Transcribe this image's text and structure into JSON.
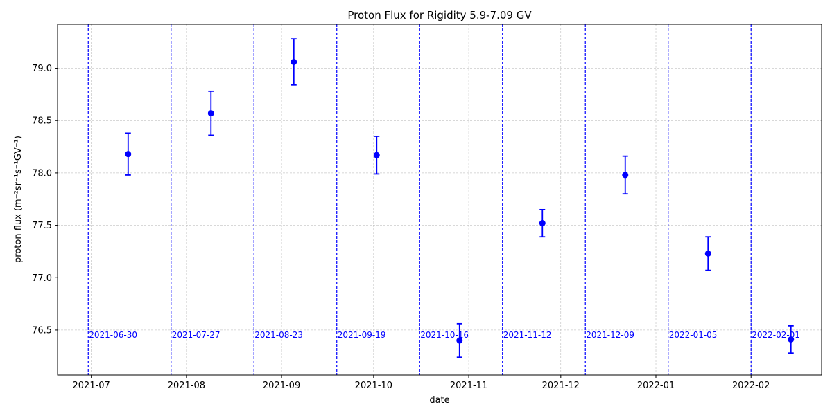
{
  "chart_data": {
    "type": "scatter",
    "title": "Proton Flux for Rigidity 5.9-7.09 GV",
    "xlabel": "date",
    "ylabel": "proton flux (m⁻²sr⁻¹s⁻¹GV⁻¹)",
    "xlim": [
      "2021-06-20",
      "2022-02-24"
    ],
    "ylim": [
      76.07,
      79.42
    ],
    "grid": true,
    "x_ticks": [
      {
        "date": "2021-07-01",
        "label": "2021-07"
      },
      {
        "date": "2021-08-01",
        "label": "2021-08"
      },
      {
        "date": "2021-09-01",
        "label": "2021-09"
      },
      {
        "date": "2021-10-01",
        "label": "2021-10"
      },
      {
        "date": "2021-11-01",
        "label": "2021-11"
      },
      {
        "date": "2021-12-01",
        "label": "2021-12"
      },
      {
        "date": "2022-01-01",
        "label": "2022-01"
      },
      {
        "date": "2022-02-01",
        "label": "2022-02"
      }
    ],
    "y_ticks": [
      76.5,
      77.0,
      77.5,
      78.0,
      78.5,
      79.0
    ],
    "y_tick_labels": [
      "76.5",
      "77.0",
      "77.5",
      "78.0",
      "78.5",
      "79.0"
    ],
    "series": [
      {
        "color": "#0000ff",
        "points": [
          {
            "x": "2021-07-13",
            "y": 78.18,
            "err": 0.2
          },
          {
            "x": "2021-08-09",
            "y": 78.57,
            "err": 0.21
          },
          {
            "x": "2021-09-05",
            "y": 79.06,
            "err": 0.22
          },
          {
            "x": "2021-10-02",
            "y": 78.17,
            "err": 0.18
          },
          {
            "x": "2021-10-29",
            "y": 76.4,
            "err": 0.16
          },
          {
            "x": "2021-11-25",
            "y": 77.52,
            "err": 0.13
          },
          {
            "x": "2021-12-22",
            "y": 77.98,
            "err": 0.18
          },
          {
            "x": "2022-01-18",
            "y": 77.23,
            "err": 0.16
          },
          {
            "x": "2022-02-14",
            "y": 76.41,
            "err": 0.13
          }
        ]
      }
    ],
    "vlines": [
      {
        "date": "2021-06-30",
        "label": "2021-06-30"
      },
      {
        "date": "2021-07-27",
        "label": "2021-07-27"
      },
      {
        "date": "2021-08-23",
        "label": "2021-08-23"
      },
      {
        "date": "2021-09-19",
        "label": "2021-09-19"
      },
      {
        "date": "2021-10-16",
        "label": "2021-10-16"
      },
      {
        "date": "2021-11-12",
        "label": "2021-11-12"
      },
      {
        "date": "2021-12-09",
        "label": "2021-12-09"
      },
      {
        "date": "2022-01-05",
        "label": "2022-01-05"
      },
      {
        "date": "2022-02-01",
        "label": "2022-02-01"
      }
    ],
    "vline_color": "#0000ff",
    "vline_style": "dashed"
  }
}
